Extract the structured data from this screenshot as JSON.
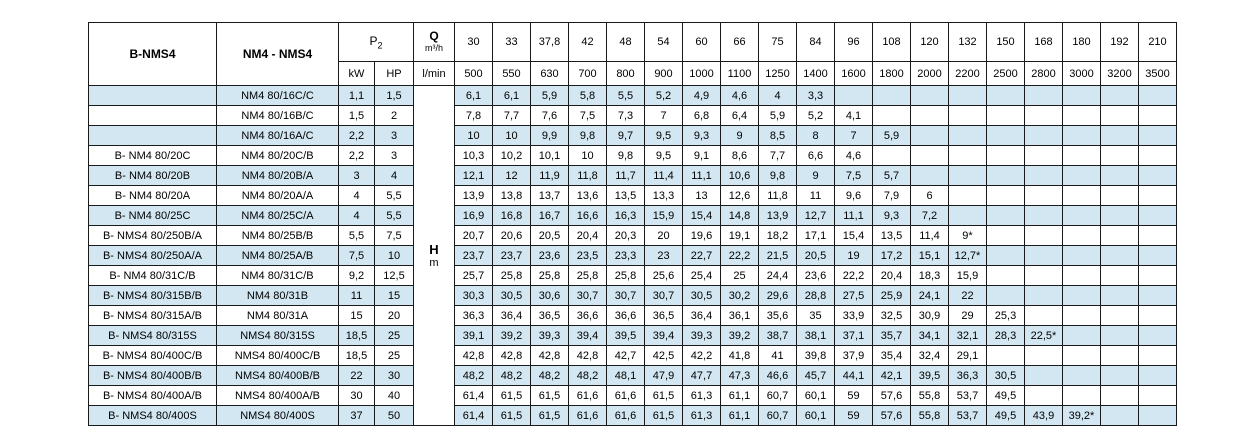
{
  "table": {
    "header": {
      "series_left": "B-NMS4",
      "series_right": "NM4 - NMS4",
      "p2_label": "P",
      "p2_sub": "2",
      "q_label": "Q",
      "q_unit": "m³/h",
      "kw_label": "kW",
      "hp_label": "HP",
      "lmin_label": "l/min",
      "h_label": "H",
      "h_unit": "m",
      "flows_m3h": [
        "30",
        "33",
        "37,8",
        "42",
        "48",
        "54",
        "60",
        "66",
        "75",
        "84",
        "96",
        "108",
        "120",
        "132",
        "150",
        "168",
        "180",
        "192",
        "210"
      ],
      "flows_lmin": [
        "500",
        "550",
        "630",
        "700",
        "800",
        "900",
        "1000",
        "1100",
        "1250",
        "1400",
        "1600",
        "1800",
        "2000",
        "2200",
        "2500",
        "2800",
        "3000",
        "3200",
        "3500"
      ]
    },
    "rows": [
      {
        "name": "",
        "model": "NM4 80/16C/C",
        "kw": "1,1",
        "hp": "1,5",
        "heads": [
          "6,1",
          "6,1",
          "5,9",
          "5,8",
          "5,5",
          "5,2",
          "4,9",
          "4,6",
          "4",
          "3,3"
        ]
      },
      {
        "name": "",
        "model": "NM4 80/16B/C",
        "kw": "1,5",
        "hp": "2",
        "heads": [
          "7,8",
          "7,7",
          "7,6",
          "7,5",
          "7,3",
          "7",
          "6,8",
          "6,4",
          "5,9",
          "5,2",
          "4,1"
        ]
      },
      {
        "name": "",
        "model": "NM4 80/16A/C",
        "kw": "2,2",
        "hp": "3",
        "heads": [
          "10",
          "10",
          "9,9",
          "9,8",
          "9,7",
          "9,5",
          "9,3",
          "9",
          "8,5",
          "8",
          "7",
          "5,9"
        ]
      },
      {
        "name": "B- NM4 80/20C",
        "model": "NM4 80/20C/B",
        "kw": "2,2",
        "hp": "3",
        "heads": [
          "10,3",
          "10,2",
          "10,1",
          "10",
          "9,8",
          "9,5",
          "9,1",
          "8,6",
          "7,7",
          "6,6",
          "4,6"
        ]
      },
      {
        "name": "B- NM4 80/20B",
        "model": "NM4 80/20B/A",
        "kw": "3",
        "hp": "4",
        "heads": [
          "12,1",
          "12",
          "11,9",
          "11,8",
          "11,7",
          "11,4",
          "11,1",
          "10,6",
          "9,8",
          "9",
          "7,5",
          "5,7"
        ]
      },
      {
        "name": "B- NM4 80/20A",
        "model": "NM4 80/20A/A",
        "kw": "4",
        "hp": "5,5",
        "heads": [
          "13,9",
          "13,8",
          "13,7",
          "13,6",
          "13,5",
          "13,3",
          "13",
          "12,6",
          "11,8",
          "11",
          "9,6",
          "7,9",
          "6"
        ]
      },
      {
        "name": "B- NM4 80/25C",
        "model": "NM4 80/25C/A",
        "kw": "4",
        "hp": "5,5",
        "heads": [
          "16,9",
          "16,8",
          "16,7",
          "16,6",
          "16,3",
          "15,9",
          "15,4",
          "14,8",
          "13,9",
          "12,7",
          "11,1",
          "9,3",
          "7,2"
        ]
      },
      {
        "name": "B- NMS4 80/250B/A",
        "model": "NM4 80/25B/B",
        "kw": "5,5",
        "hp": "7,5",
        "heads": [
          "20,7",
          "20,6",
          "20,5",
          "20,4",
          "20,3",
          "20",
          "19,6",
          "19,1",
          "18,2",
          "17,1",
          "15,4",
          "13,5",
          "11,4",
          "9*"
        ]
      },
      {
        "name": "B- NMS4 80/250A/A",
        "model": "NM4 80/25A/B",
        "kw": "7,5",
        "hp": "10",
        "heads": [
          "23,7",
          "23,7",
          "23,6",
          "23,5",
          "23,3",
          "23",
          "22,7",
          "22,2",
          "21,5",
          "20,5",
          "19",
          "17,2",
          "15,1",
          "12,7*"
        ]
      },
      {
        "name": "B- NM4 80/31C/B",
        "model": "NM4 80/31C/B",
        "kw": "9,2",
        "hp": "12,5",
        "heads": [
          "25,7",
          "25,8",
          "25,8",
          "25,8",
          "25,8",
          "25,6",
          "25,4",
          "25",
          "24,4",
          "23,6",
          "22,2",
          "20,4",
          "18,3",
          "15,9"
        ]
      },
      {
        "name": "B- NMS4 80/315B/B",
        "model": "NM4 80/31B",
        "kw": "11",
        "hp": "15",
        "heads": [
          "30,3",
          "30,5",
          "30,6",
          "30,7",
          "30,7",
          "30,7",
          "30,5",
          "30,2",
          "29,6",
          "28,8",
          "27,5",
          "25,9",
          "24,1",
          "22"
        ]
      },
      {
        "name": "B- NMS4 80/315A/B",
        "model": "NM4 80/31A",
        "kw": "15",
        "hp": "20",
        "heads": [
          "36,3",
          "36,4",
          "36,5",
          "36,6",
          "36,6",
          "36,5",
          "36,4",
          "36,1",
          "35,6",
          "35",
          "33,9",
          "32,5",
          "30,9",
          "29",
          "25,3"
        ]
      },
      {
        "name": "B- NMS4 80/315S",
        "model": "NMS4 80/315S",
        "kw": "18,5",
        "hp": "25",
        "heads": [
          "39,1",
          "39,2",
          "39,3",
          "39,4",
          "39,5",
          "39,4",
          "39,3",
          "39,2",
          "38,7",
          "38,1",
          "37,1",
          "35,7",
          "34,1",
          "32,1",
          "28,3",
          "22,5*"
        ]
      },
      {
        "name": "B- NMS4 80/400C/B",
        "model": "NMS4 80/400C/B",
        "kw": "18,5",
        "hp": "25",
        "heads": [
          "42,8",
          "42,8",
          "42,8",
          "42,8",
          "42,7",
          "42,5",
          "42,2",
          "41,8",
          "41",
          "39,8",
          "37,9",
          "35,4",
          "32,4",
          "29,1"
        ]
      },
      {
        "name": "B- NMS4 80/400B/B",
        "model": "NMS4 80/400B/B",
        "kw": "22",
        "hp": "30",
        "heads": [
          "48,2",
          "48,2",
          "48,2",
          "48,2",
          "48,1",
          "47,9",
          "47,7",
          "47,3",
          "46,6",
          "45,7",
          "44,1",
          "42,1",
          "39,5",
          "36,3",
          "30,5"
        ]
      },
      {
        "name": "B- NMS4 80/400A/B",
        "model": "NMS4 80/400A/B",
        "kw": "30",
        "hp": "40",
        "heads": [
          "61,4",
          "61,5",
          "61,5",
          "61,6",
          "61,6",
          "61,5",
          "61,3",
          "61,1",
          "60,7",
          "60,1",
          "59",
          "57,6",
          "55,8",
          "53,7",
          "49,5"
        ]
      },
      {
        "name": "B- NMS4 80/400S",
        "model": "NMS4 80/400S",
        "kw": "37",
        "hp": "50",
        "heads": [
          "61,4",
          "61,5",
          "61,5",
          "61,6",
          "61,6",
          "61,5",
          "61,3",
          "61,1",
          "60,7",
          "60,1",
          "59",
          "57,6",
          "55,8",
          "53,7",
          "49,5",
          "43,9",
          "39,2*"
        ]
      }
    ],
    "colors": {
      "stripe_blue": "#d2e7f2",
      "border": "#1a1a1a",
      "background": "#ffffff"
    }
  }
}
